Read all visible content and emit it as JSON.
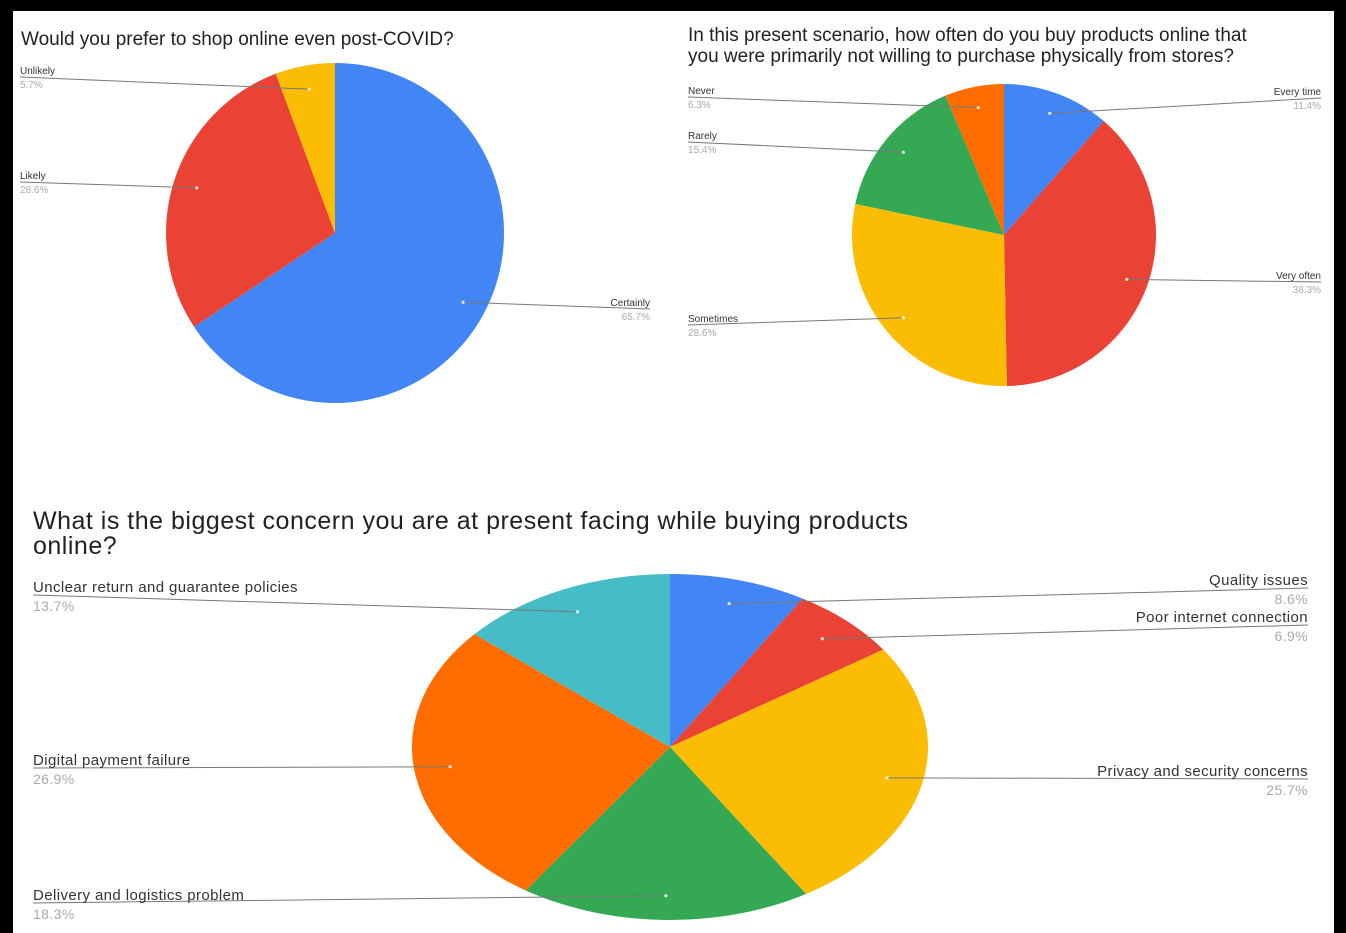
{
  "chart_data": [
    {
      "type": "pie",
      "title": "Would you prefer to shop online even post-COVID?",
      "slices": [
        {
          "label": "Certainly",
          "value": 65.7,
          "display": "65.7%",
          "color": "#4285f4"
        },
        {
          "label": "Likely",
          "value": 28.6,
          "display": "28.6%",
          "color": "#ea4335"
        },
        {
          "label": "Unlikely",
          "value": 5.7,
          "display": "5.7%",
          "color": "#fbbc04"
        }
      ]
    },
    {
      "type": "pie",
      "title": "In this present scenario, how often do you buy products online that you were primarily not willing to purchase physically from stores?",
      "slices": [
        {
          "label": "Every time",
          "value": 11.4,
          "display": "11.4%",
          "color": "#4285f4"
        },
        {
          "label": "Very often",
          "value": 38.3,
          "display": "38.3%",
          "color": "#ea4335"
        },
        {
          "label": "Sometimes",
          "value": 28.6,
          "display": "28.6%",
          "color": "#fbbc04"
        },
        {
          "label": "Rarely",
          "value": 15.4,
          "display": "15.4%",
          "color": "#34a853"
        },
        {
          "label": "Never",
          "value": 6.3,
          "display": "6.3%",
          "color": "#ff6d01"
        }
      ]
    },
    {
      "type": "pie",
      "title": "What is the biggest concern you are at present facing while buying products online?",
      "slices": [
        {
          "label": "Quality issues",
          "value": 8.6,
          "display": "8.6%",
          "color": "#4285f4"
        },
        {
          "label": "Poor internet connection",
          "value": 6.9,
          "display": "6.9%",
          "color": "#ea4335"
        },
        {
          "label": "Privacy and security concerns",
          "value": 25.7,
          "display": "25.7%",
          "color": "#fbbc04"
        },
        {
          "label": "Delivery and logistics problem",
          "value": 18.3,
          "display": "18.3%",
          "color": "#34a853"
        },
        {
          "label": "Digital payment failure",
          "value": 26.9,
          "display": "26.9%",
          "color": "#ff6d01"
        },
        {
          "label": "Unclear return and guarantee policies",
          "value": 13.7,
          "display": "13.7%",
          "color": "#46bdc6"
        }
      ]
    }
  ]
}
